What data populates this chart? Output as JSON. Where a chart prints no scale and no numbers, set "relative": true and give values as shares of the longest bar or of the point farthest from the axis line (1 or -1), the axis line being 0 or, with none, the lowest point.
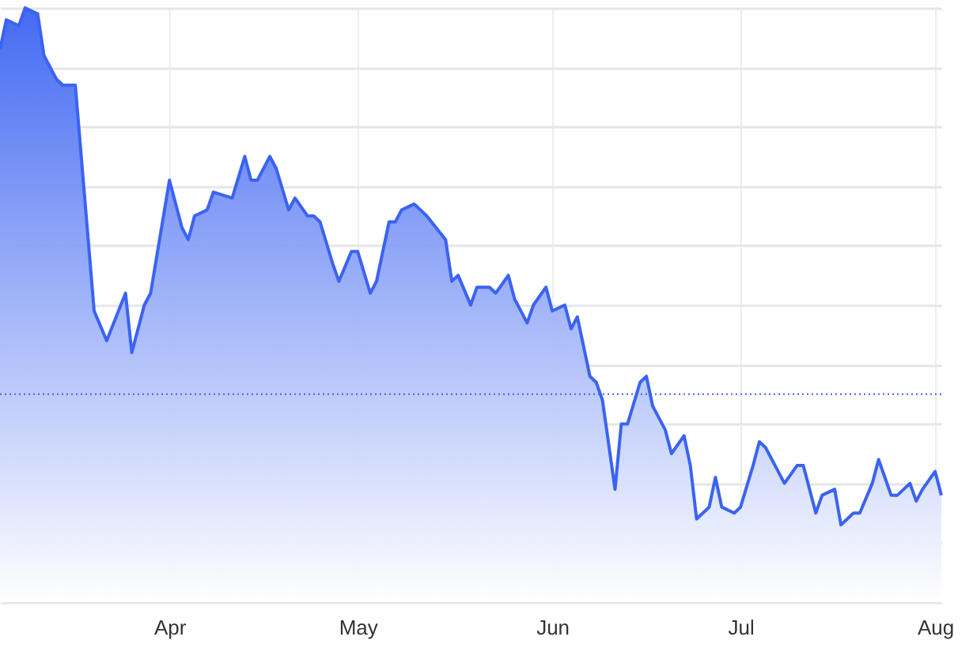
{
  "chart_data": {
    "type": "area",
    "relative": true,
    "grid": true,
    "line_style": "solid",
    "xlim": [
      "--03-05",
      "--08-02"
    ],
    "xticks": [
      {
        "value": "--04-01",
        "label": "Apr"
      },
      {
        "value": "--05-01",
        "label": "May"
      },
      {
        "value": "--06-01",
        "label": "Jun"
      },
      {
        "value": "--07-01",
        "label": "Jul"
      },
      {
        "value": "--08-01",
        "label": "Aug"
      }
    ],
    "ref_lines": [
      {
        "axis": "y",
        "value": 0.35,
        "color": "#3b63f2",
        "line_style": "dotted"
      }
    ],
    "series": [
      {
        "color": "#3b63f2",
        "x": [
          "--03-05",
          "--03-06",
          "--03-08",
          "--03-09",
          "--03-11",
          "--03-12",
          "--03-14",
          "--03-15",
          "--03-17",
          "--03-20",
          "--03-22",
          "--03-25",
          "--03-26",
          "--03-28",
          "--03-29",
          "--04-01",
          "--04-03",
          "--04-04",
          "--04-05",
          "--04-07",
          "--04-08",
          "--04-11",
          "--04-13",
          "--04-14",
          "--04-15",
          "--04-17",
          "--04-18",
          "--04-20",
          "--04-21",
          "--04-23",
          "--04-24",
          "--04-25",
          "--04-27",
          "--04-28",
          "--04-30",
          "--05-01",
          "--05-03",
          "--05-04",
          "--05-06",
          "--05-07",
          "--05-08",
          "--05-10",
          "--05-12",
          "--05-15",
          "--05-16",
          "--05-17",
          "--05-19",
          "--05-20",
          "--05-22",
          "--05-23",
          "--05-25",
          "--05-26",
          "--05-28",
          "--05-29",
          "--05-31",
          "--06-01",
          "--06-03",
          "--06-04",
          "--06-05",
          "--06-07",
          "--06-08",
          "--06-09",
          "--06-11",
          "--06-12",
          "--06-13",
          "--06-15",
          "--06-16",
          "--06-17",
          "--06-19",
          "--06-20",
          "--06-22",
          "--06-23",
          "--06-24",
          "--06-26",
          "--06-27",
          "--06-28",
          "--06-30",
          "--07-01",
          "--07-03",
          "--07-04",
          "--07-05",
          "--07-07",
          "--07-08",
          "--07-10",
          "--07-11",
          "--07-13",
          "--07-14",
          "--07-16",
          "--07-17",
          "--07-19",
          "--07-20",
          "--07-22",
          "--07-23",
          "--07-25",
          "--07-26",
          "--07-28",
          "--07-29",
          "--07-30",
          "--08-01",
          "--08-02"
        ],
        "values": [
          0.93,
          0.98,
          0.97,
          1,
          0.99,
          0.92,
          0.88,
          0.87,
          0.87,
          0.49,
          0.44,
          0.52,
          0.42,
          0.5,
          0.52,
          0.71,
          0.63,
          0.61,
          0.65,
          0.66,
          0.69,
          0.68,
          0.75,
          0.71,
          0.71,
          0.75,
          0.73,
          0.66,
          0.68,
          0.65,
          0.65,
          0.64,
          0.57,
          0.54,
          0.59,
          0.59,
          0.52,
          0.54,
          0.64,
          0.64,
          0.66,
          0.67,
          0.65,
          0.61,
          0.54,
          0.55,
          0.5,
          0.53,
          0.53,
          0.52,
          0.55,
          0.51,
          0.47,
          0.5,
          0.53,
          0.49,
          0.5,
          0.46,
          0.48,
          0.38,
          0.37,
          0.34,
          0.19,
          0.3,
          0.3,
          0.37,
          0.38,
          0.33,
          0.29,
          0.25,
          0.28,
          0.23,
          0.14,
          0.16,
          0.21,
          0.16,
          0.15,
          0.16,
          0.23,
          0.27,
          0.26,
          0.22,
          0.2,
          0.23,
          0.23,
          0.15,
          0.18,
          0.19,
          0.13,
          0.15,
          0.15,
          0.2,
          0.24,
          0.18,
          0.18,
          0.2,
          0.17,
          0.19,
          0.22,
          0.18
        ]
      }
    ]
  }
}
